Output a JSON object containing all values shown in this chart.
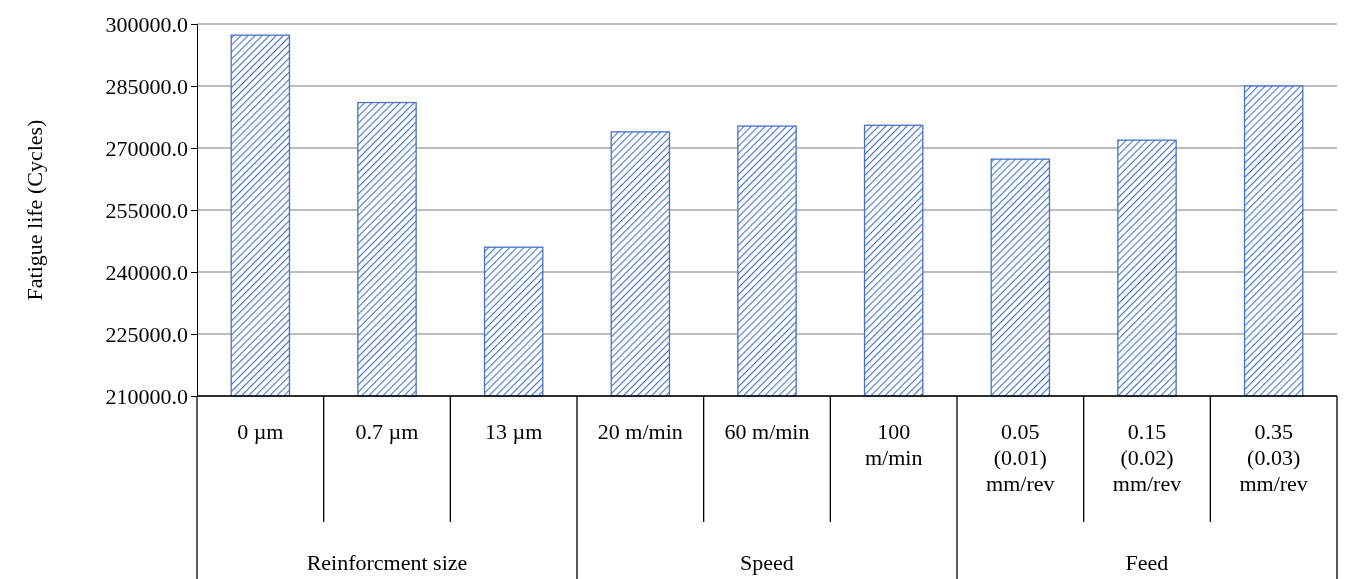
{
  "chart_data": {
    "type": "bar",
    "ylabel": "Fatigue life (Cycles)",
    "categories": [
      "0 µm",
      "0.7 µm",
      "13 µm",
      "20 m/min",
      "60 m/min",
      "100 m/min",
      "0.05 (0.01) mm/rev",
      "0.15 (0.02) mm/rev",
      "0.35 (0.03) mm/rev"
    ],
    "values": [
      297300,
      281000,
      246000,
      273900,
      275300,
      275500,
      267300,
      271900,
      285000
    ],
    "color": "#4472c4",
    "ylim": [
      210000,
      300000
    ],
    "yticks": [
      {
        "value": 210000,
        "label": "210000.0"
      },
      {
        "value": 225000,
        "label": "225000.0"
      },
      {
        "value": 240000,
        "label": "240000.0"
      },
      {
        "value": 255000,
        "label": "255000.0"
      },
      {
        "value": 270000,
        "label": "270000.0"
      },
      {
        "value": 285000,
        "label": "285000.0"
      },
      {
        "value": 300000,
        "label": "300000.0"
      }
    ],
    "grid": "y",
    "annotations": [
      "Reinforcment size",
      "Speed",
      "Feed"
    ]
  }
}
